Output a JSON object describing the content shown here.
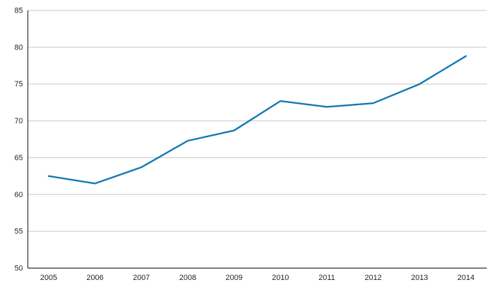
{
  "chart_data": {
    "type": "line",
    "title": "",
    "xlabel": "",
    "ylabel": "",
    "x": [
      "2005",
      "2006",
      "2007",
      "2008",
      "2009",
      "2010",
      "2011",
      "2012",
      "2013",
      "2014"
    ],
    "values": [
      62.5,
      61.5,
      63.7,
      67.3,
      68.7,
      72.7,
      71.9,
      72.4,
      75.0,
      78.8
    ],
    "ylim": [
      50,
      85
    ],
    "ytick_step": 5,
    "yticks": [
      50,
      55,
      60,
      65,
      70,
      75,
      80,
      85
    ],
    "grid": "horizontal",
    "legend": "none",
    "line_color": "#1478b4",
    "grid_color": "#c7c7c7",
    "axis_color": "#2b2b2b",
    "text_color": "#231f20"
  }
}
